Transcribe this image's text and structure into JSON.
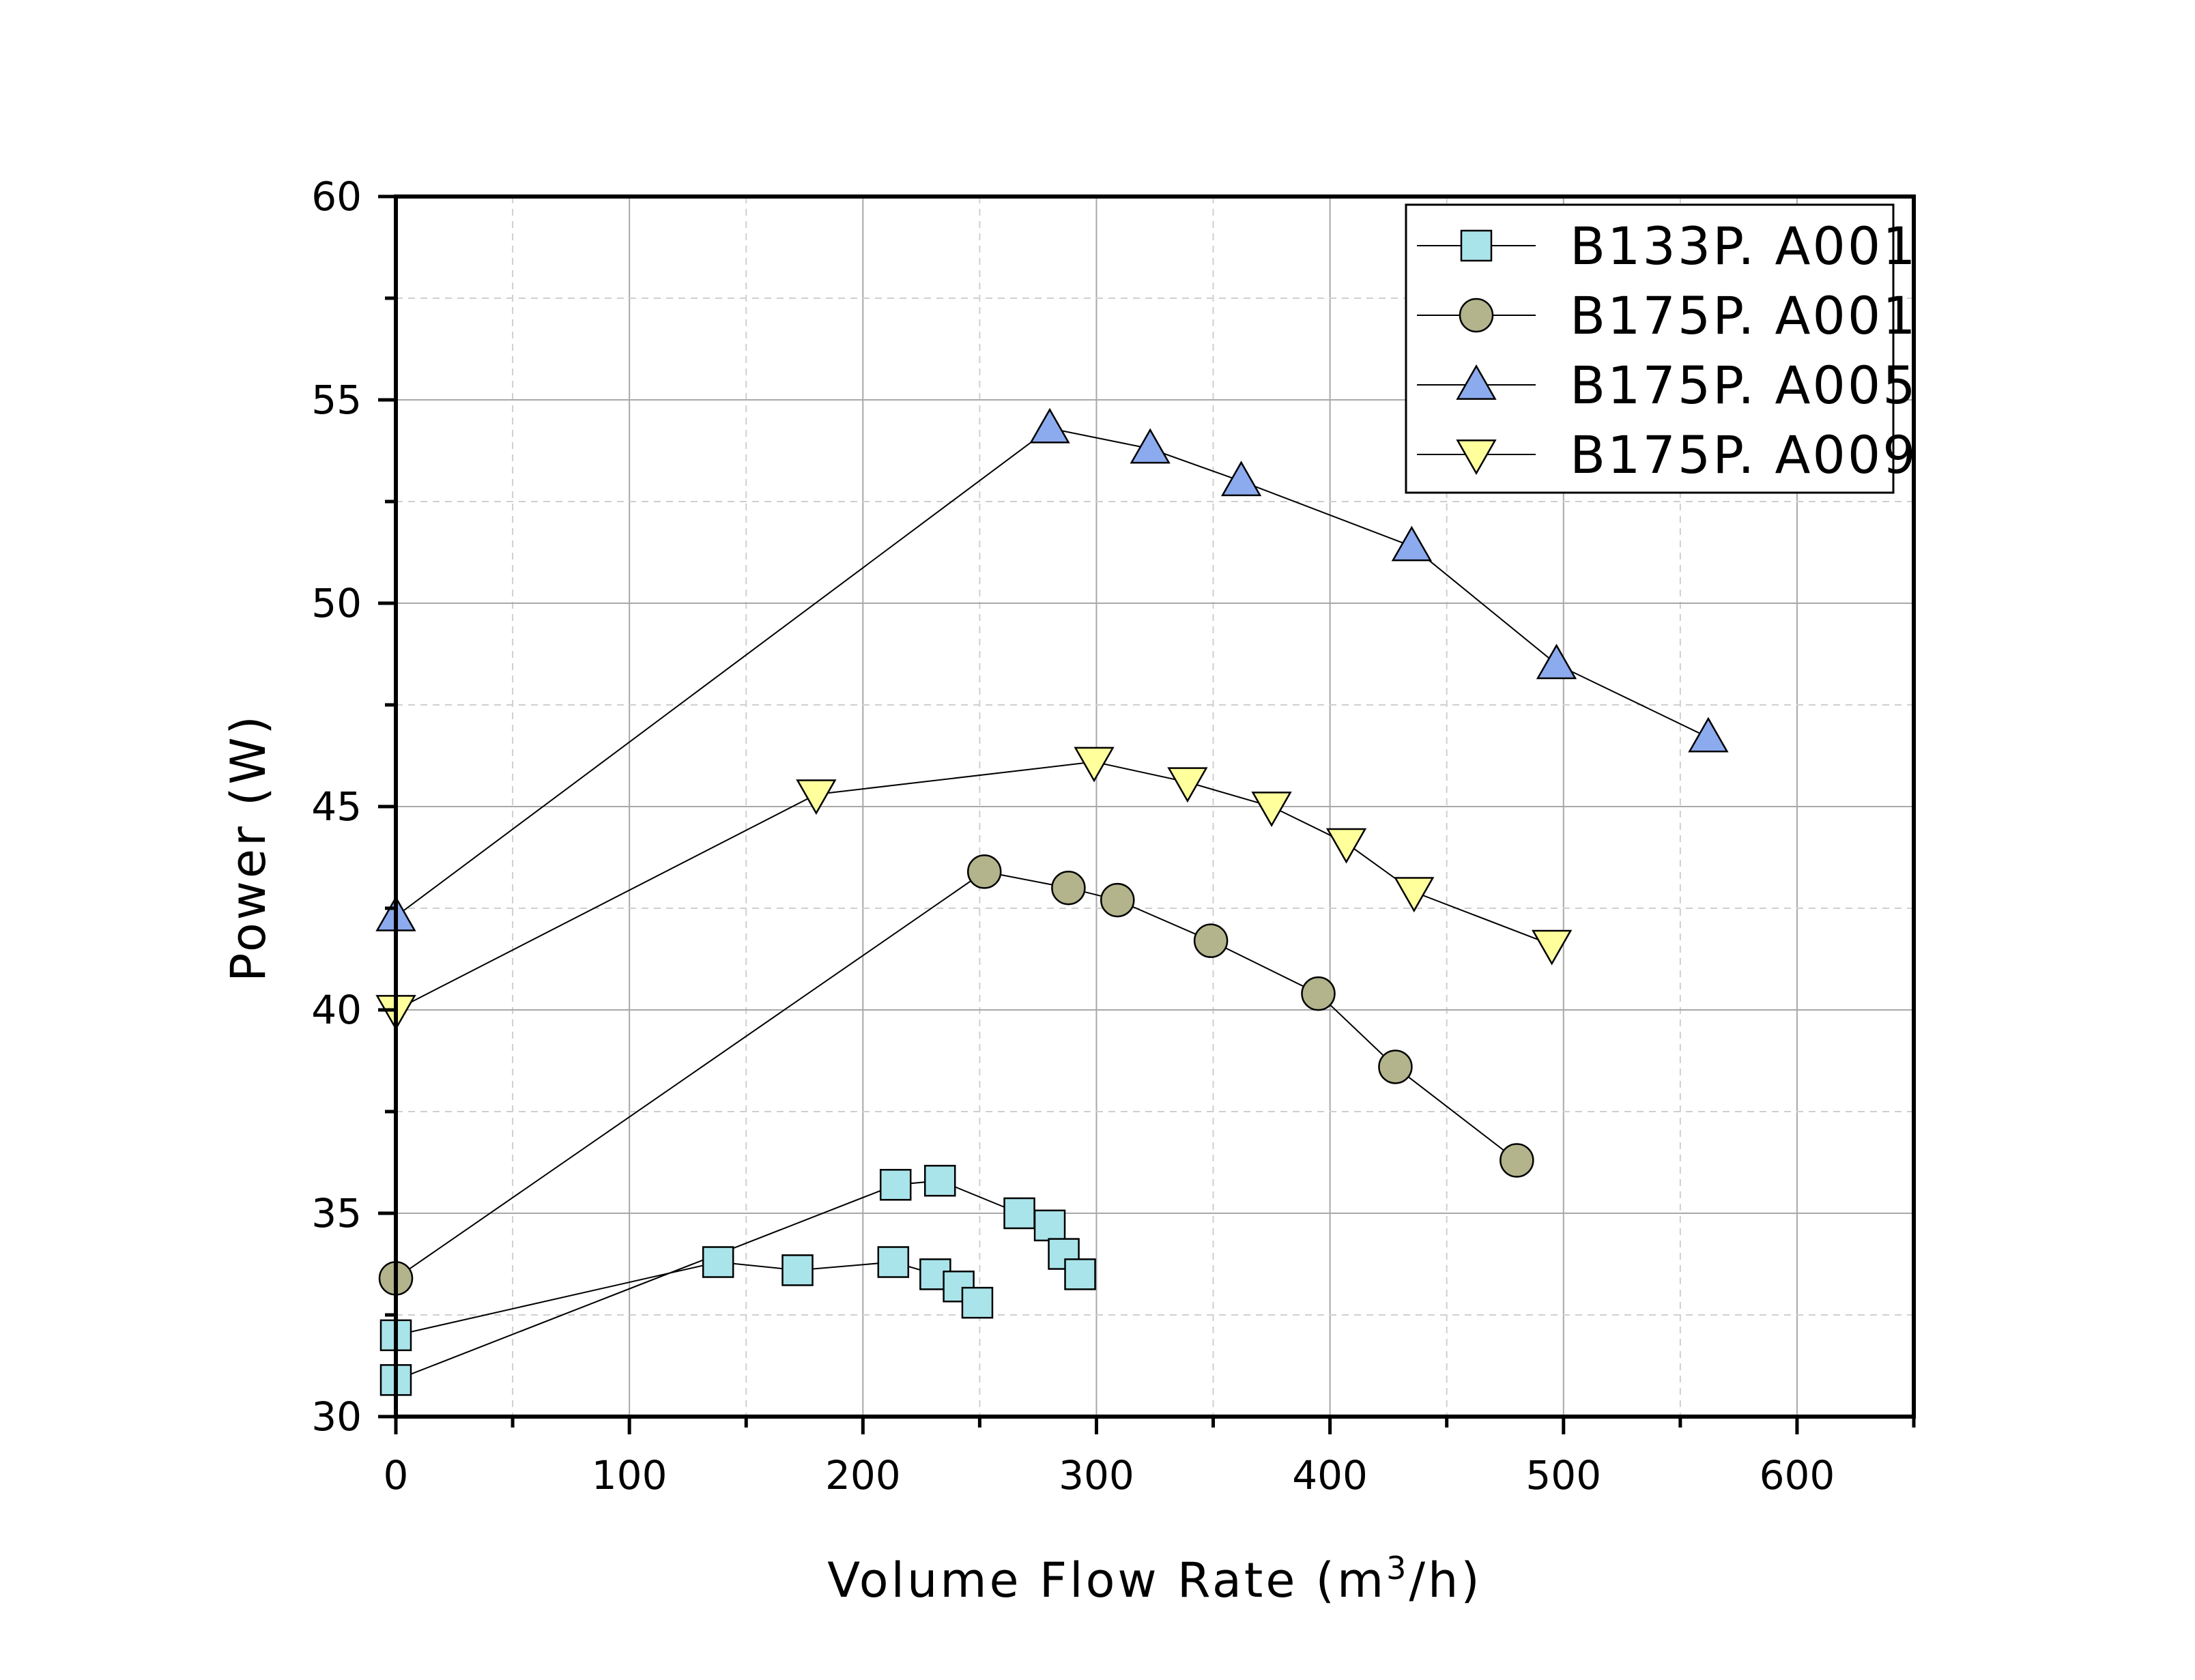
{
  "chart_data": {
    "type": "line",
    "title": "",
    "xlabel": "Volume Flow Rate (m",
    "xlabel_superscript": "3",
    "xlabel_suffix": "/h)",
    "ylabel": "Power (W)",
    "xlim": [
      0,
      650
    ],
    "ylim": [
      30,
      60
    ],
    "x_ticks": [
      0,
      100,
      200,
      300,
      400,
      500,
      600
    ],
    "y_ticks": [
      30,
      35,
      40,
      45,
      50,
      55,
      60
    ],
    "grid": true,
    "legend_position": "top-right",
    "series": [
      {
        "name": "B133P. A001",
        "marker": "square",
        "color": "#a9e4ea",
        "x": [
          0,
          138,
          172,
          213,
          231,
          241,
          249
        ],
        "y": [
          32.0,
          33.8,
          33.6,
          33.8,
          33.5,
          33.2,
          32.8
        ]
      },
      {
        "name": "B133P. A001",
        "legend": false,
        "marker": "square",
        "color": "#a9e4ea",
        "x": [
          0,
          214,
          233,
          267,
          280,
          286,
          293
        ],
        "y": [
          30.9,
          35.7,
          35.8,
          35.0,
          34.7,
          34.0,
          33.5
        ]
      },
      {
        "name": "B175P. A001",
        "marker": "circle",
        "color": "#b3b38c",
        "x": [
          0,
          252,
          288,
          309,
          349,
          395,
          428,
          480
        ],
        "y": [
          33.4,
          43.4,
          43.0,
          42.7,
          41.7,
          40.4,
          38.6,
          36.3
        ]
      },
      {
        "name": "B175P. A005",
        "marker": "triangle-up",
        "color": "#8caaee",
        "x": [
          0,
          280,
          323,
          362,
          435,
          497,
          562
        ],
        "y": [
          42.3,
          54.3,
          53.8,
          53.0,
          51.4,
          48.5,
          46.7
        ]
      },
      {
        "name": "B175P. A009",
        "marker": "triangle-down",
        "color": "#ffff9c",
        "x": [
          0,
          180,
          299,
          339,
          375,
          407,
          436,
          495
        ],
        "y": [
          40.0,
          45.3,
          46.1,
          45.6,
          45.0,
          44.1,
          42.9,
          41.6
        ]
      }
    ]
  }
}
